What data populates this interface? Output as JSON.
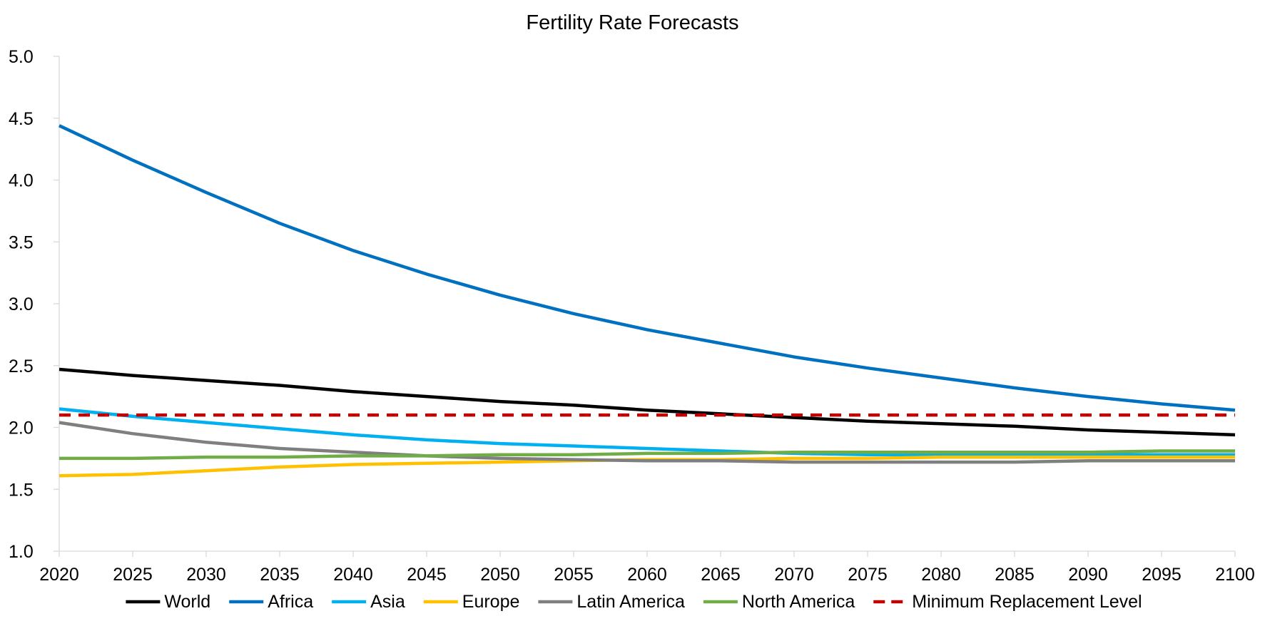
{
  "chart_data": {
    "type": "line",
    "title": "Fertility Rate Forecasts",
    "xlabel": "",
    "ylabel": "",
    "x": [
      2020,
      2025,
      2030,
      2035,
      2040,
      2045,
      2050,
      2055,
      2060,
      2065,
      2070,
      2075,
      2080,
      2085,
      2090,
      2095,
      2100
    ],
    "x_ticks": [
      "2020",
      "2025",
      "2030",
      "2035",
      "2040",
      "2045",
      "2050",
      "2055",
      "2060",
      "2065",
      "2070",
      "2075",
      "2080",
      "2085",
      "2090",
      "2095",
      "2100"
    ],
    "y_ticks": [
      "1.0",
      "1.5",
      "2.0",
      "2.5",
      "3.0",
      "3.5",
      "4.0",
      "4.5",
      "5.0"
    ],
    "ylim": [
      1.0,
      5.0
    ],
    "xlim": [
      2020,
      2100
    ],
    "grid": false,
    "legend_position": "bottom",
    "series": [
      {
        "name": "World",
        "color": "#000000",
        "dashed": false,
        "values": [
          2.47,
          2.42,
          2.38,
          2.34,
          2.29,
          2.25,
          2.21,
          2.18,
          2.14,
          2.11,
          2.08,
          2.05,
          2.03,
          2.01,
          1.98,
          1.96,
          1.94
        ]
      },
      {
        "name": "Africa",
        "color": "#0070C0",
        "dashed": false,
        "values": [
          4.44,
          4.16,
          3.9,
          3.65,
          3.43,
          3.24,
          3.07,
          2.92,
          2.79,
          2.68,
          2.57,
          2.48,
          2.4,
          2.32,
          2.25,
          2.19,
          2.14
        ]
      },
      {
        "name": "Asia",
        "color": "#00B0F0",
        "dashed": false,
        "values": [
          2.15,
          2.09,
          2.04,
          1.99,
          1.94,
          1.9,
          1.87,
          1.85,
          1.83,
          1.81,
          1.79,
          1.78,
          1.78,
          1.78,
          1.78,
          1.78,
          1.78
        ]
      },
      {
        "name": "Europe",
        "color": "#FFC000",
        "dashed": false,
        "values": [
          1.61,
          1.62,
          1.65,
          1.68,
          1.7,
          1.71,
          1.72,
          1.73,
          1.74,
          1.74,
          1.75,
          1.75,
          1.76,
          1.76,
          1.76,
          1.76,
          1.76
        ]
      },
      {
        "name": "Latin America",
        "color": "#7F7F7F",
        "dashed": false,
        "values": [
          2.04,
          1.95,
          1.88,
          1.83,
          1.8,
          1.77,
          1.75,
          1.74,
          1.73,
          1.73,
          1.72,
          1.72,
          1.72,
          1.72,
          1.73,
          1.73,
          1.73
        ]
      },
      {
        "name": "North America",
        "color": "#70AD47",
        "dashed": false,
        "values": [
          1.75,
          1.75,
          1.76,
          1.76,
          1.77,
          1.77,
          1.78,
          1.78,
          1.79,
          1.79,
          1.8,
          1.8,
          1.8,
          1.8,
          1.8,
          1.81,
          1.81
        ]
      },
      {
        "name": "Minimum Replacement Level",
        "color": "#C00000",
        "dashed": true,
        "values": [
          2.1,
          2.1,
          2.1,
          2.1,
          2.1,
          2.1,
          2.1,
          2.1,
          2.1,
          2.1,
          2.1,
          2.1,
          2.1,
          2.1,
          2.1,
          2.1,
          2.1
        ]
      }
    ]
  }
}
